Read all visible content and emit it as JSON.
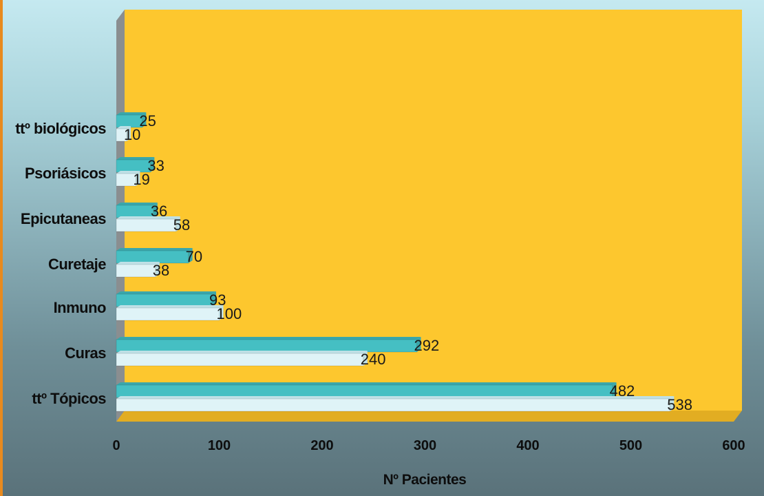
{
  "chart_data": {
    "type": "bar",
    "orientation": "horizontal",
    "categories": [
      "ttº biológicos",
      "Psoriásicos",
      "Epicutaneas",
      "Curetaje",
      "Inmuno",
      "Curas",
      "ttº Tópicos"
    ],
    "series": [
      {
        "values": [
          25,
          33,
          36,
          70,
          93,
          292,
          482
        ]
      },
      {
        "values": [
          10,
          19,
          58,
          38,
          100,
          240,
          538
        ]
      }
    ],
    "xlabel": "Nº Pacientes",
    "ylabel": "",
    "xlim": [
      0,
      600
    ],
    "xticks": [
      "0",
      "100",
      "200",
      "300",
      "400",
      "500",
      "600"
    ],
    "grid": false,
    "legend": "none",
    "colors": {
      "series_1": "#45bfc3",
      "series_2": "#dff3f7",
      "plot_background": "#fdc72e",
      "side_wall": "#8a8e90",
      "page_accent": "#e88a1e"
    }
  }
}
